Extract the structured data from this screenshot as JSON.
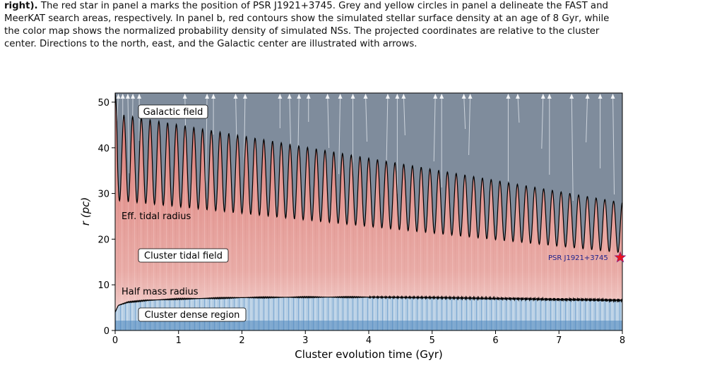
{
  "caption": {
    "line1_bold": "right).",
    "line1_rest": " The red star in panel a marks the position of PSR J1921+3745. Grey and yellow circles in panel a delineate the FAST and",
    "line2": "MeerKAT search areas, respectively. In panel b, red contours show the simulated stellar surface density at an age of 8 Gyr, while",
    "line3": "the color map shows the normalized probability density of simulated NSs. The projected coordinates are relative to the cluster",
    "line4": "center. Directions to the north, east, and the Galactic center are illustrated with arrows."
  },
  "chart_data": {
    "type": "area",
    "xlabel": "Cluster evolution time (Gyr)",
    "ylabel": "r (pc)",
    "xlim": [
      0,
      8
    ],
    "ylim": [
      0,
      52
    ],
    "xticks": [
      0,
      1,
      2,
      3,
      4,
      5,
      6,
      7,
      8
    ],
    "yticks": [
      0,
      10,
      20,
      30,
      40,
      50
    ],
    "regions": {
      "galactic_field": "Galactic field",
      "cluster_tidal_field": "Cluster tidal field",
      "cluster_dense_region": "Cluster dense region"
    },
    "curve_labels": {
      "tidal": "Eff. tidal radius",
      "half_mass": "Half mass radius"
    },
    "tidal_radius": {
      "oscillation_cycles": 58,
      "peak_start": 47.5,
      "peak_end": 28,
      "trough_start": 28.5,
      "trough_end": 17
    },
    "half_mass_radius": {
      "x": [
        0,
        0.05,
        0.2,
        0.5,
        1,
        2,
        3,
        4,
        5,
        6,
        7,
        8
      ],
      "y": [
        4,
        5.5,
        6.2,
        6.6,
        6.9,
        7.2,
        7.3,
        7.3,
        7.2,
        7.0,
        6.8,
        6.6
      ]
    },
    "pulsar": {
      "label": "PSR J1921+3745",
      "x": 8.0,
      "y": 16
    },
    "colors": {
      "galactic_field": "#7f8c9c",
      "tidal_field": "#d9706a",
      "dense_region": "#a9c4dc",
      "dense_core": "#3f7eb8",
      "curve": "#000000",
      "star": "#e8141f",
      "pulsar_label": "#1c1f8a"
    }
  }
}
